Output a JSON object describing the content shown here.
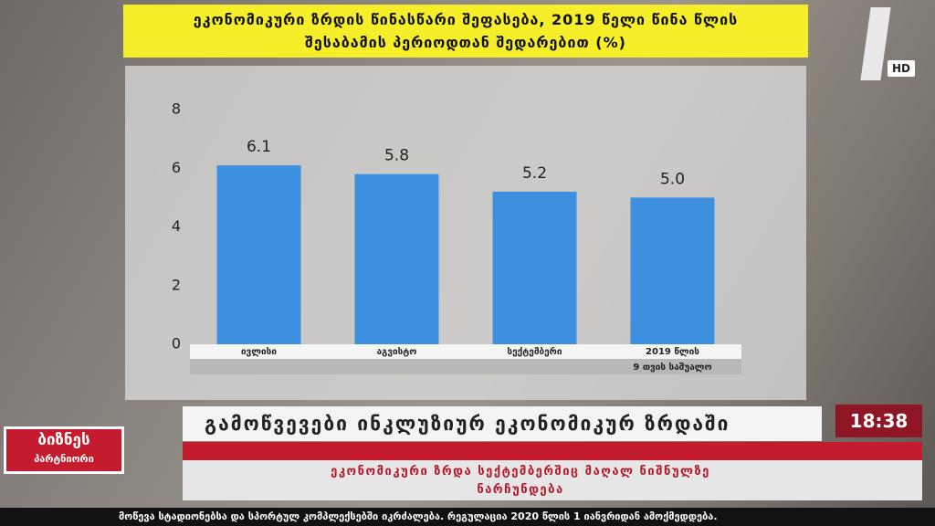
{
  "chart_data": {
    "type": "bar",
    "title": "ეკონომიკური ზრდის წინასწარი შეფასება, 2019 წელი წინა წლის შესაბამის პერიოდთან შედარებით (%)",
    "categories": [
      "ივლისი",
      "აგვისტო",
      "სექტემბერი",
      "2019 წლის"
    ],
    "category_note": "9 თვის საშუალო",
    "values": [
      6.1,
      5.8,
      5.2,
      5.0
    ],
    "value_labels": [
      "6.1",
      "5.8",
      "5.2",
      "5.0"
    ],
    "color": "#3d8fe0",
    "ylim": [
      0,
      8
    ],
    "yticks": [
      0,
      2,
      4,
      6,
      8
    ]
  },
  "broadcast": {
    "channel_badge": "HD",
    "clock": "18:38",
    "program_logo": [
      "ბიზნეს",
      "პარტნიორი"
    ],
    "headline": "გამოწვევები ინკლუზიურ ეკონომიკურ ზრდაში",
    "subheadline": "ეკონომიკური ზრდა სექტემბერშიც მაღალ ნიშნულზე ნარჩუნდება",
    "ticker": "მოწევა სტადიონებსა და სპორტულ კომპლექსებში იკრძალება. რეგულაცია 2020 წლის 1 იანვრიდან ამოქმედდება."
  }
}
